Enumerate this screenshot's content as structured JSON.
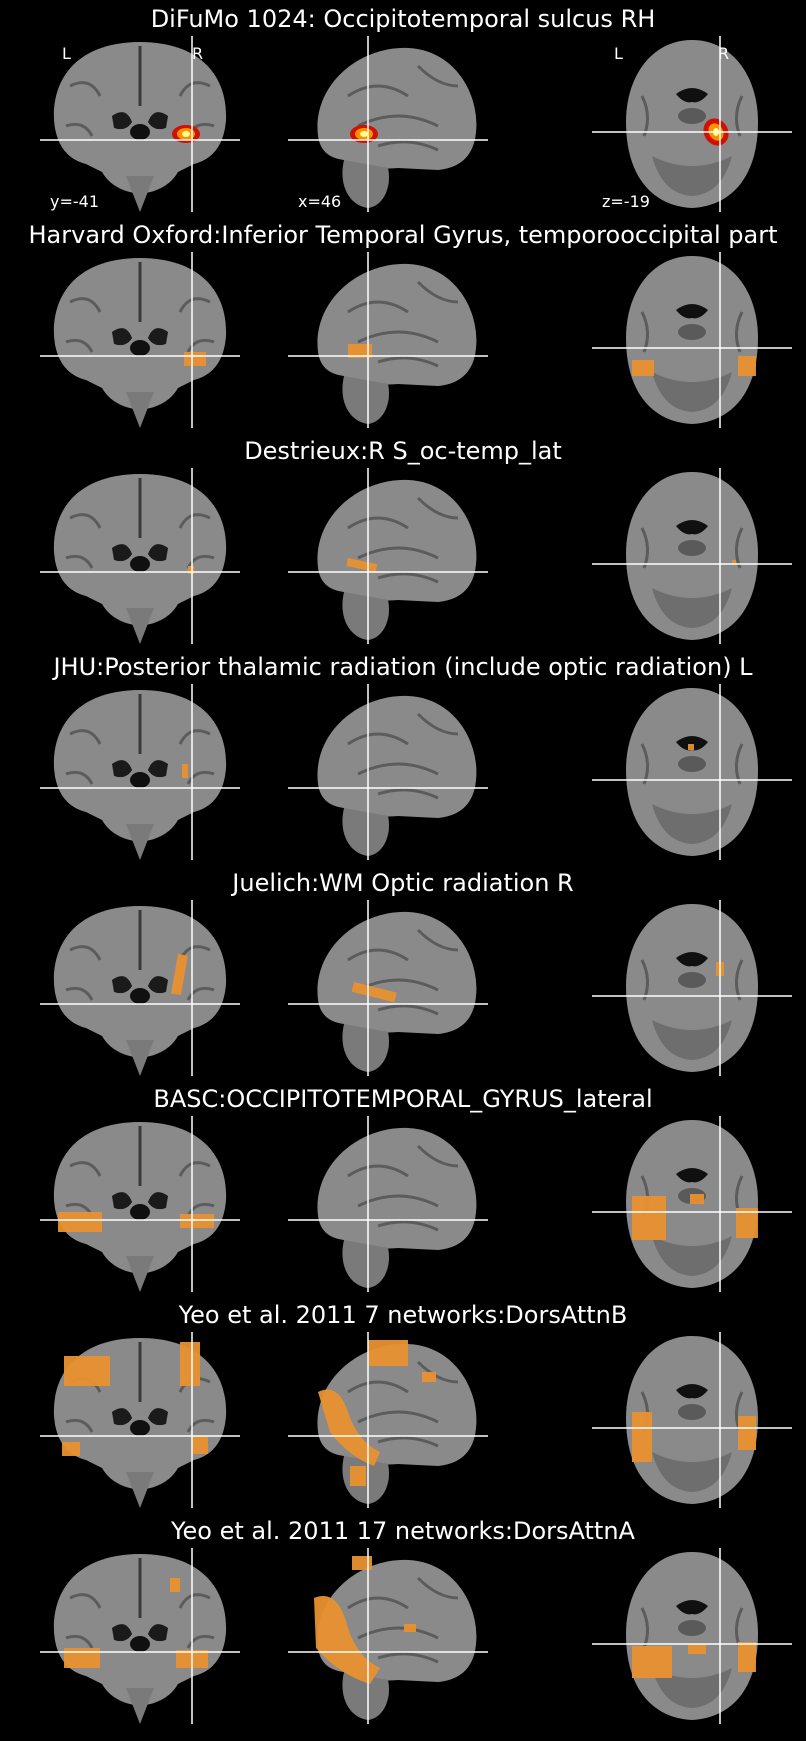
{
  "figure": {
    "panels": [
      {
        "title": "DiFuMo 1024: Occipitotemporal sulcus RH",
        "colormap": "hot",
        "show_labels": true,
        "orientation": {
          "left": "L",
          "right": "R"
        },
        "coords": {
          "coronal": "y=-41",
          "sagittal": "x=46",
          "axial": "z=-19"
        },
        "overlay": "difumo"
      },
      {
        "title": "Harvard Oxford:Inferior Temporal Gyrus, temporooccipital part",
        "colormap": "orange",
        "overlay": "harvard"
      },
      {
        "title": "Destrieux:R S_oc-temp_lat",
        "colormap": "orange",
        "overlay": "destrieux"
      },
      {
        "title": "JHU:Posterior thalamic radiation (include optic radiation) L",
        "colormap": "orange",
        "overlay": "jhu"
      },
      {
        "title": "Juelich:WM Optic radiation R",
        "colormap": "orange",
        "overlay": "juelich"
      },
      {
        "title": "BASC:OCCIPITOTEMPORAL_GYRUS_lateral",
        "colormap": "orange",
        "overlay": "basc"
      },
      {
        "title": "Yeo et al. 2011 7 networks:DorsAttnB",
        "colormap": "orange",
        "overlay": "yeo7"
      },
      {
        "title": "Yeo et al. 2011 17 networks:DorsAttnA",
        "colormap": "orange",
        "overlay": "yeo17"
      }
    ],
    "colors": {
      "background": "#000000",
      "overlay": "#e8912f",
      "crosshair": "#ffffff",
      "brain": "#8a8a8a"
    }
  }
}
